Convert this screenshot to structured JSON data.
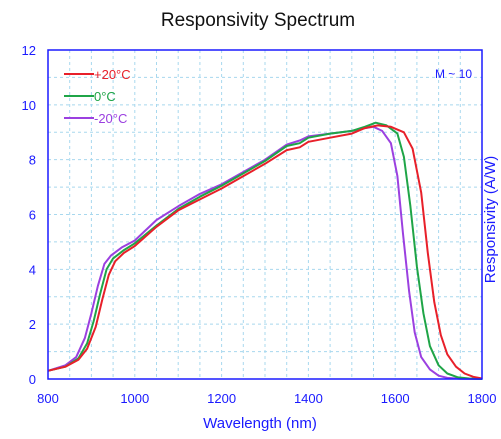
{
  "chart_data": {
    "type": "line",
    "title": "Responsivity Spectrum",
    "xlabel": "Wavelength (nm)",
    "ylabel": "Responsivity (A/W)",
    "xlim": [
      800,
      1800
    ],
    "ylim": [
      0,
      12
    ],
    "xticks": [
      800,
      1000,
      1200,
      1400,
      1600,
      1800
    ],
    "yticks": [
      0,
      2,
      4,
      6,
      8,
      10,
      12
    ],
    "x_tick_labels": [
      "800",
      "1000",
      "1200",
      "1400",
      "1600",
      "1800"
    ],
    "y_tick_labels": [
      "0",
      "2",
      "4",
      "6",
      "8",
      "10",
      "12"
    ],
    "grid": true,
    "legend_position": "top-left",
    "annotation": "M ~ 10",
    "colors": {
      "axis": "#1a1aff",
      "grid": "#a8d8ee"
    },
    "series": [
      {
        "name": "+20°C",
        "color": "#e8202a",
        "points": [
          [
            800,
            0.3
          ],
          [
            840,
            0.45
          ],
          [
            870,
            0.7
          ],
          [
            890,
            1.1
          ],
          [
            910,
            1.9
          ],
          [
            925,
            2.9
          ],
          [
            940,
            3.8
          ],
          [
            955,
            4.3
          ],
          [
            975,
            4.6
          ],
          [
            1000,
            4.85
          ],
          [
            1050,
            5.55
          ],
          [
            1100,
            6.15
          ],
          [
            1150,
            6.55
          ],
          [
            1200,
            6.95
          ],
          [
            1250,
            7.4
          ],
          [
            1300,
            7.85
          ],
          [
            1350,
            8.35
          ],
          [
            1380,
            8.45
          ],
          [
            1400,
            8.65
          ],
          [
            1450,
            8.8
          ],
          [
            1500,
            8.95
          ],
          [
            1530,
            9.15
          ],
          [
            1560,
            9.25
          ],
          [
            1590,
            9.2
          ],
          [
            1620,
            9.0
          ],
          [
            1640,
            8.4
          ],
          [
            1660,
            6.8
          ],
          [
            1675,
            4.6
          ],
          [
            1690,
            2.8
          ],
          [
            1705,
            1.6
          ],
          [
            1720,
            0.9
          ],
          [
            1740,
            0.45
          ],
          [
            1760,
            0.2
          ],
          [
            1780,
            0.08
          ],
          [
            1800,
            0.02
          ]
        ]
      },
      {
        "name": "0°C",
        "color": "#1fa547",
        "points": [
          [
            800,
            0.3
          ],
          [
            840,
            0.45
          ],
          [
            870,
            0.75
          ],
          [
            890,
            1.3
          ],
          [
            905,
            2.1
          ],
          [
            920,
            3.1
          ],
          [
            935,
            4.0
          ],
          [
            950,
            4.4
          ],
          [
            975,
            4.7
          ],
          [
            1000,
            4.95
          ],
          [
            1050,
            5.6
          ],
          [
            1100,
            6.2
          ],
          [
            1150,
            6.65
          ],
          [
            1200,
            7.05
          ],
          [
            1250,
            7.5
          ],
          [
            1300,
            7.95
          ],
          [
            1350,
            8.5
          ],
          [
            1380,
            8.6
          ],
          [
            1400,
            8.8
          ],
          [
            1450,
            8.95
          ],
          [
            1500,
            9.05
          ],
          [
            1530,
            9.2
          ],
          [
            1555,
            9.35
          ],
          [
            1580,
            9.25
          ],
          [
            1605,
            8.95
          ],
          [
            1620,
            8.1
          ],
          [
            1635,
            6.3
          ],
          [
            1650,
            4.1
          ],
          [
            1665,
            2.4
          ],
          [
            1680,
            1.2
          ],
          [
            1700,
            0.5
          ],
          [
            1720,
            0.2
          ],
          [
            1745,
            0.06
          ],
          [
            1770,
            0.02
          ],
          [
            1800,
            0.0
          ]
        ]
      },
      {
        "name": "-20°C",
        "color": "#9b40e0",
        "points": [
          [
            800,
            0.3
          ],
          [
            840,
            0.5
          ],
          [
            865,
            0.8
          ],
          [
            885,
            1.5
          ],
          [
            900,
            2.4
          ],
          [
            915,
            3.4
          ],
          [
            930,
            4.2
          ],
          [
            945,
            4.5
          ],
          [
            970,
            4.8
          ],
          [
            1000,
            5.05
          ],
          [
            1050,
            5.8
          ],
          [
            1100,
            6.3
          ],
          [
            1150,
            6.75
          ],
          [
            1200,
            7.1
          ],
          [
            1250,
            7.55
          ],
          [
            1300,
            8.0
          ],
          [
            1350,
            8.55
          ],
          [
            1380,
            8.7
          ],
          [
            1400,
            8.85
          ],
          [
            1450,
            8.95
          ],
          [
            1500,
            9.05
          ],
          [
            1530,
            9.15
          ],
          [
            1550,
            9.2
          ],
          [
            1570,
            9.05
          ],
          [
            1590,
            8.6
          ],
          [
            1605,
            7.4
          ],
          [
            1618,
            5.3
          ],
          [
            1632,
            3.2
          ],
          [
            1645,
            1.7
          ],
          [
            1660,
            0.8
          ],
          [
            1680,
            0.35
          ],
          [
            1700,
            0.12
          ],
          [
            1720,
            0.04
          ],
          [
            1750,
            0.01
          ],
          [
            1800,
            0.0
          ]
        ]
      }
    ]
  }
}
